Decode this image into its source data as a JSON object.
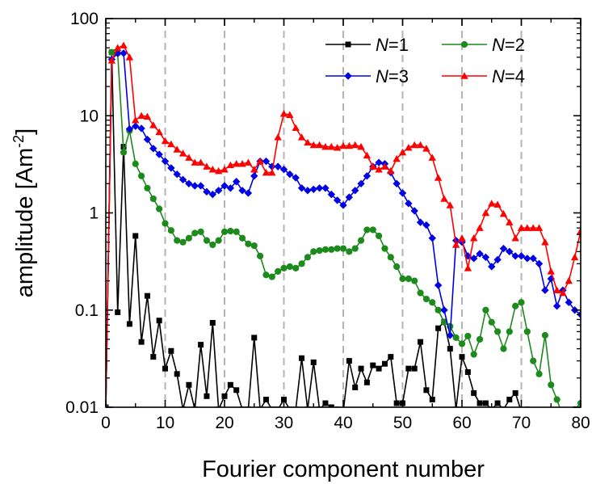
{
  "chart_data": {
    "type": "line",
    "xlabel": "Fourier component number",
    "ylabel_main": "amplitude [Am",
    "ylabel_sup": "-2",
    "ylabel_tail": "]",
    "xlim": [
      0,
      80
    ],
    "ylim": [
      0.01,
      100
    ],
    "y_scale": "log",
    "x_ticks": [
      0,
      10,
      20,
      30,
      40,
      50,
      60,
      70,
      80
    ],
    "x_tick_labels": [
      "0",
      "10",
      "20",
      "30",
      "40",
      "50",
      "60",
      "70",
      "80"
    ],
    "y_ticks": [
      0.01,
      0.1,
      1,
      10,
      100
    ],
    "y_tick_labels": [
      "0.01",
      "0.1",
      "1",
      "10",
      "100"
    ],
    "grid": "vertical dashed at x = 10..70",
    "legend_position": "top-right",
    "series": [
      {
        "name": "N=1",
        "legend_italic": "N",
        "legend_rest": "=1",
        "color": "#000000",
        "marker": "square",
        "x": [
          0,
          1,
          2,
          3,
          4,
          5,
          6,
          7,
          8,
          9,
          10,
          11,
          12,
          13,
          14,
          15,
          16,
          17,
          18,
          19,
          20,
          21,
          22,
          23,
          24,
          25,
          26,
          27,
          28,
          29,
          30,
          31,
          32,
          33,
          34,
          35,
          36,
          37,
          38,
          39,
          40,
          41,
          42,
          43,
          44,
          45,
          46,
          47,
          48,
          49,
          50,
          51,
          52,
          53,
          54,
          55,
          56,
          57,
          58,
          59,
          60,
          61,
          62,
          63,
          64,
          65,
          66,
          67,
          68,
          69,
          70,
          71,
          72,
          73,
          74,
          75,
          76,
          77,
          78,
          79,
          80
        ],
        "y": [
          0.01,
          45,
          0.095,
          4.8,
          0.072,
          0.58,
          0.047,
          0.14,
          0.033,
          0.078,
          0.025,
          0.038,
          0.022,
          0.0095,
          0.017,
          0.0095,
          0.044,
          0.013,
          0.074,
          0.0095,
          0.013,
          0.017,
          0.015,
          0.0095,
          0.0095,
          0.052,
          0.0095,
          0.012,
          0.0095,
          0.0095,
          0.012,
          0.0095,
          0.0095,
          0.032,
          0.0095,
          0.029,
          0.0095,
          0.011,
          0.01,
          0.0095,
          0.009,
          0.03,
          0.016,
          0.025,
          0.018,
          0.027,
          0.025,
          0.028,
          0.033,
          0.011,
          0.011,
          0.025,
          0.025,
          0.047,
          0.015,
          0.012,
          0.065,
          0.076,
          0.04,
          0.0095,
          0.033,
          0.023,
          0.014,
          0.011,
          0.011,
          0.0095,
          0.011,
          0.0095,
          0.012,
          0.014,
          0.009,
          0.0095,
          0.009,
          0.009,
          0.009,
          0.009,
          0.009,
          0.009,
          0.009,
          0.009,
          0.009
        ]
      },
      {
        "name": "N=2",
        "legend_italic": "N",
        "legend_rest": "=2",
        "color": "#1c8a1c",
        "marker": "circle",
        "x": [
          0,
          1,
          2,
          3,
          4,
          5,
          6,
          7,
          8,
          9,
          10,
          11,
          12,
          13,
          14,
          15,
          16,
          17,
          18,
          19,
          20,
          21,
          22,
          23,
          24,
          25,
          26,
          27,
          28,
          29,
          30,
          31,
          32,
          33,
          34,
          35,
          36,
          37,
          38,
          39,
          40,
          41,
          42,
          43,
          44,
          45,
          46,
          47,
          48,
          49,
          50,
          51,
          52,
          53,
          54,
          55,
          56,
          57,
          58,
          59,
          60,
          61,
          62,
          63,
          64,
          65,
          66,
          67,
          68,
          69,
          70,
          71,
          72,
          73,
          74,
          75,
          76,
          77,
          78,
          79,
          80
        ],
        "y": [
          0.01,
          45,
          44,
          4.2,
          7,
          3.2,
          2.4,
          1.8,
          1.4,
          1.1,
          0.78,
          0.66,
          0.52,
          0.5,
          0.55,
          0.62,
          0.64,
          0.52,
          0.47,
          0.52,
          0.64,
          0.65,
          0.64,
          0.55,
          0.48,
          0.46,
          0.36,
          0.23,
          0.22,
          0.25,
          0.27,
          0.28,
          0.27,
          0.3,
          0.35,
          0.4,
          0.41,
          0.42,
          0.42,
          0.43,
          0.43,
          0.4,
          0.43,
          0.52,
          0.67,
          0.67,
          0.58,
          0.43,
          0.35,
          0.28,
          0.21,
          0.21,
          0.2,
          0.15,
          0.13,
          0.12,
          0.1,
          0.075,
          0.068,
          0.052,
          0.045,
          0.054,
          0.035,
          0.05,
          0.1,
          0.075,
          0.06,
          0.04,
          0.06,
          0.11,
          0.12,
          0.06,
          0.03,
          0.022,
          0.055,
          0.017,
          0.012,
          0.008,
          0.008,
          0.0095,
          0.011
        ]
      },
      {
        "name": "N=3",
        "legend_italic": "N",
        "legend_rest": "=3",
        "color": "#0000e6",
        "marker": "diamond",
        "x": [
          0,
          1,
          2,
          3,
          4,
          5,
          6,
          7,
          8,
          9,
          10,
          11,
          12,
          13,
          14,
          15,
          16,
          17,
          18,
          19,
          20,
          21,
          22,
          23,
          24,
          25,
          26,
          27,
          28,
          29,
          30,
          31,
          32,
          33,
          34,
          35,
          36,
          37,
          38,
          39,
          40,
          41,
          42,
          43,
          44,
          45,
          46,
          47,
          48,
          49,
          50,
          51,
          52,
          53,
          54,
          55,
          56,
          57,
          58,
          59,
          60,
          61,
          62,
          63,
          64,
          65,
          66,
          67,
          68,
          69,
          70,
          71,
          72,
          73,
          74,
          75,
          76,
          77,
          78,
          79,
          80
        ],
        "y": [
          0.01,
          38,
          44,
          44,
          7.3,
          7.8,
          7.4,
          5.7,
          4.6,
          4,
          3.4,
          2.9,
          2.5,
          2.2,
          2,
          1.9,
          1.9,
          1.65,
          1.55,
          1.7,
          1.9,
          1.8,
          2.1,
          1.7,
          1.6,
          2.4,
          3.4,
          3.4,
          3,
          3,
          2.8,
          2.5,
          2.3,
          1.8,
          1.7,
          1.75,
          1.8,
          1.8,
          1.55,
          1.35,
          1.2,
          1.45,
          1.7,
          2,
          2.4,
          3,
          3.3,
          3.2,
          2.6,
          2,
          1.6,
          1.25,
          1.05,
          0.8,
          0.75,
          0.55,
          0.18,
          0.1,
          0.055,
          0.52,
          0.5,
          0.36,
          0.34,
          0.38,
          0.35,
          0.28,
          0.33,
          0.43,
          0.4,
          0.36,
          0.36,
          0.34,
          0.34,
          0.3,
          0.16,
          0.21,
          0.11,
          0.16,
          0.12,
          0.1,
          0.09
        ]
      },
      {
        "name": "N=4",
        "legend_italic": "N",
        "legend_rest": "=4",
        "color": "#ff0000",
        "marker": "triangle",
        "x": [
          0,
          1,
          2,
          3,
          4,
          5,
          6,
          7,
          8,
          9,
          10,
          11,
          12,
          13,
          14,
          15,
          16,
          17,
          18,
          19,
          20,
          21,
          22,
          23,
          24,
          25,
          26,
          27,
          28,
          29,
          30,
          31,
          32,
          33,
          34,
          35,
          36,
          37,
          38,
          39,
          40,
          41,
          42,
          43,
          44,
          45,
          46,
          47,
          48,
          49,
          50,
          51,
          52,
          53,
          54,
          55,
          56,
          57,
          58,
          59,
          60,
          61,
          62,
          63,
          64,
          65,
          66,
          67,
          68,
          69,
          70,
          71,
          72,
          73,
          74,
          75,
          76,
          77,
          78,
          79,
          80
        ],
        "y": [
          0.01,
          37,
          50,
          53,
          40,
          9,
          10,
          9.8,
          8,
          6.8,
          5.5,
          5.1,
          4.5,
          4.1,
          3.7,
          3.3,
          3.3,
          3,
          2.8,
          2.7,
          2.8,
          3.1,
          3.2,
          3.2,
          3.3,
          2.8,
          3.4,
          2.6,
          2.6,
          6,
          10.5,
          10.2,
          7.5,
          6,
          5.3,
          5,
          5,
          4.8,
          4.8,
          4.7,
          4.9,
          4.9,
          5,
          4.8,
          3.9,
          3,
          2.8,
          3,
          2.7,
          3.6,
          4.2,
          4.7,
          5,
          5,
          4.6,
          3.7,
          2.3,
          1.4,
          1.2,
          0.47,
          0.55,
          0.27,
          0.55,
          0.7,
          1.0,
          1.25,
          1.22,
          0.98,
          0.8,
          0.55,
          0.7,
          0.7,
          0.7,
          0.7,
          0.5,
          0.25,
          0.16,
          0.15,
          0.2,
          0.35,
          0.65
        ]
      }
    ]
  }
}
